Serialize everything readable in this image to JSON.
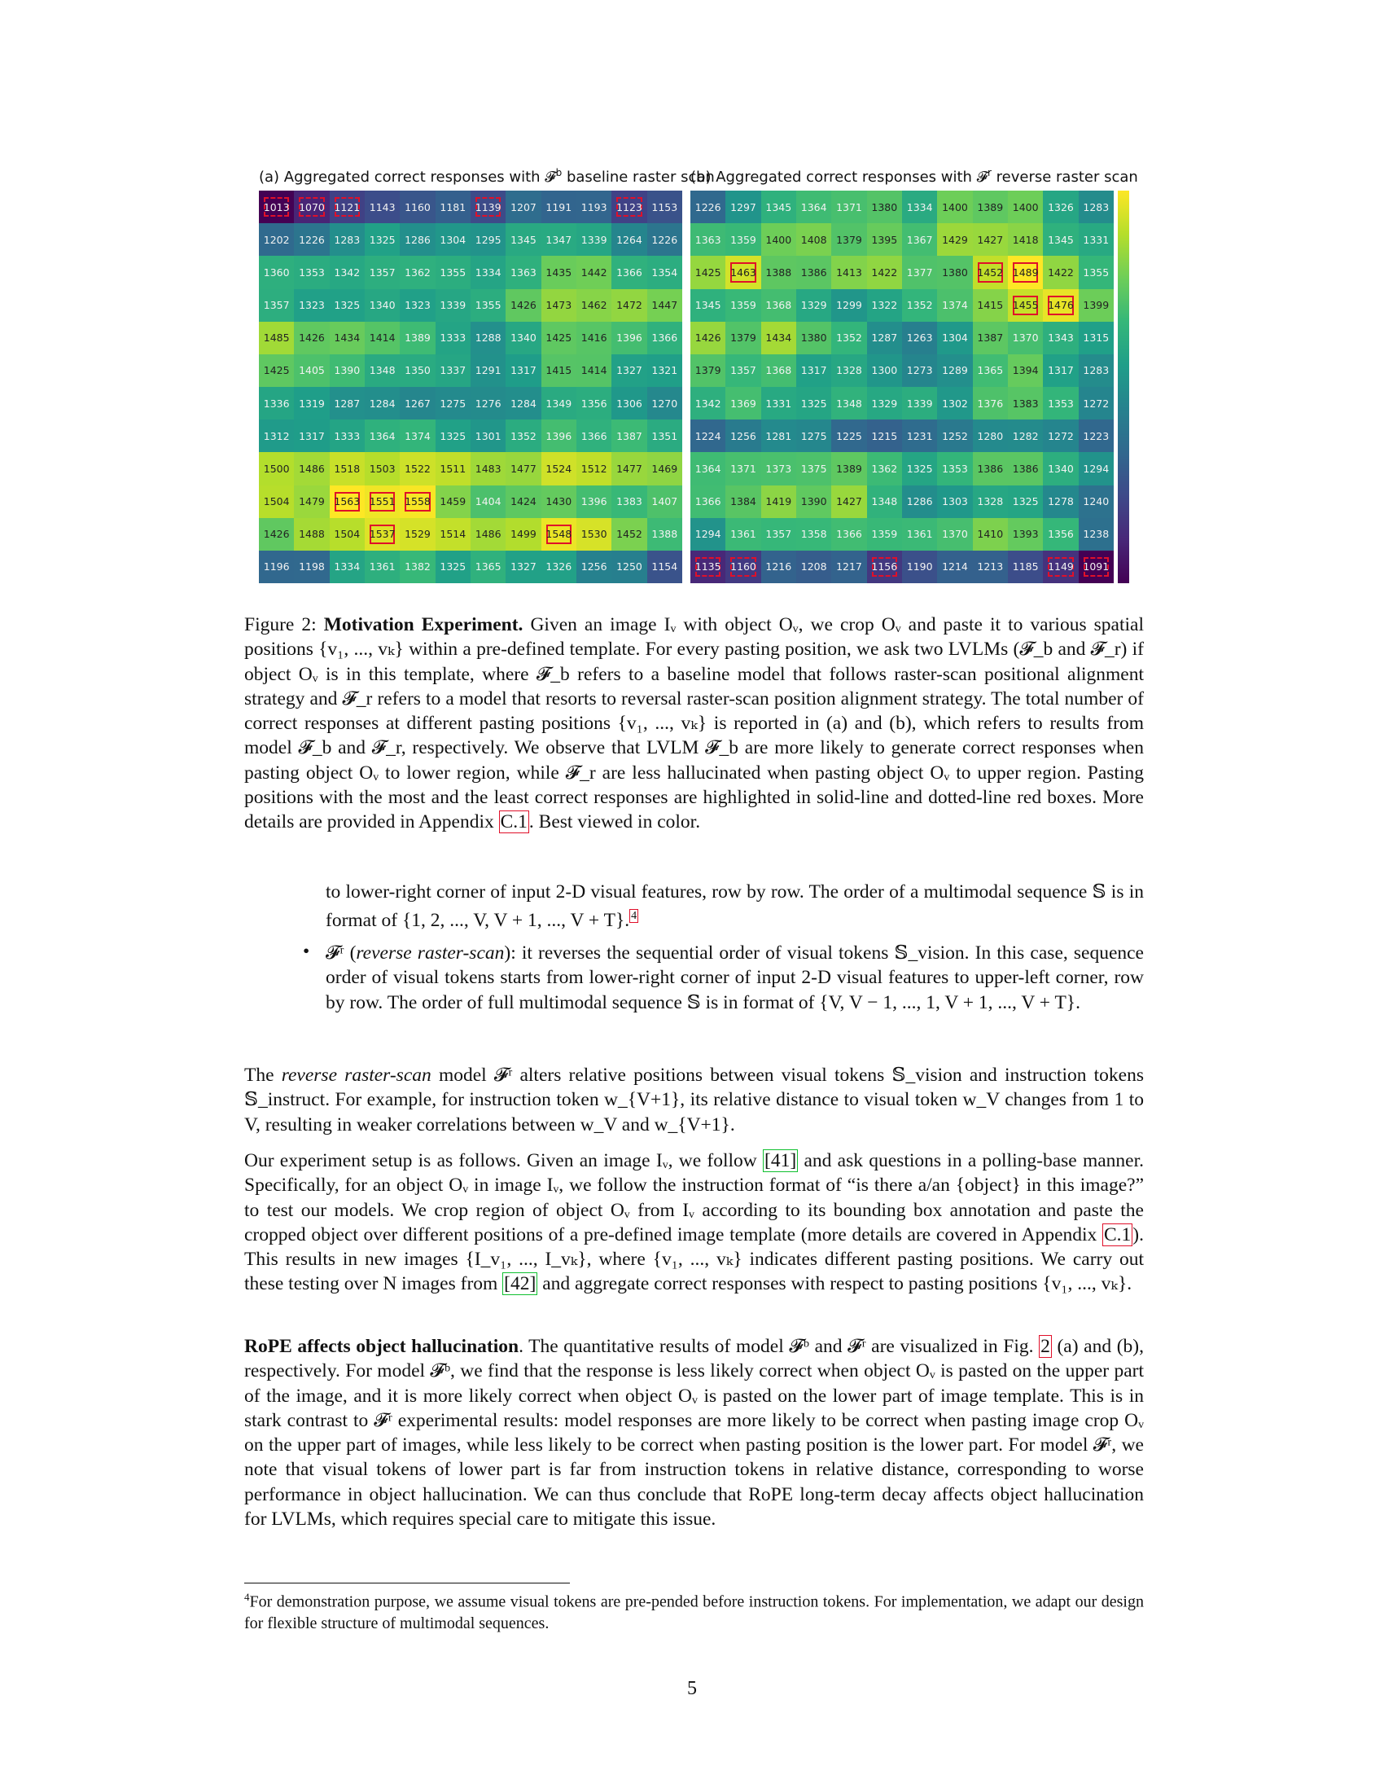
{
  "figure": {
    "title_a_prefix": "(a) Aggregated correct responses with ",
    "title_a_sym": "𝓕",
    "title_a_sup": "b",
    "title_a_suffix": " baseline raster scan",
    "title_b_prefix": "(b) Aggregated correct responses with ",
    "title_b_sym": "𝓕",
    "title_b_sup": "r",
    "title_b_suffix": " reverse raster scan",
    "colormap": [
      "#440154",
      "#482878",
      "#3e4989",
      "#31688e",
      "#26828e",
      "#1f9e89",
      "#35b779",
      "#6ece58",
      "#b5de2b",
      "#fde725"
    ],
    "highlight_color": "#e0102a"
  },
  "chart_data": [
    {
      "type": "heatmap",
      "title": "(a) Aggregated correct responses with 𝓕b baseline raster scan",
      "values": [
        [
          1013,
          1070,
          1121,
          1143,
          1160,
          1181,
          1139,
          1207,
          1191,
          1193,
          1123,
          1153
        ],
        [
          1202,
          1226,
          1283,
          1325,
          1286,
          1304,
          1295,
          1345,
          1347,
          1339,
          1264,
          1226
        ],
        [
          1360,
          1353,
          1342,
          1357,
          1362,
          1355,
          1334,
          1363,
          1435,
          1442,
          1366,
          1354
        ],
        [
          1357,
          1323,
          1325,
          1340,
          1323,
          1339,
          1355,
          1426,
          1473,
          1462,
          1472,
          1447
        ],
        [
          1485,
          1426,
          1434,
          1414,
          1389,
          1333,
          1288,
          1340,
          1425,
          1416,
          1396,
          1366
        ],
        [
          1425,
          1405,
          1390,
          1348,
          1350,
          1337,
          1291,
          1317,
          1415,
          1414,
          1327,
          1321
        ],
        [
          1336,
          1319,
          1287,
          1284,
          1267,
          1275,
          1276,
          1284,
          1349,
          1356,
          1306,
          1270
        ],
        [
          1312,
          1317,
          1333,
          1364,
          1374,
          1325,
          1301,
          1352,
          1396,
          1366,
          1387,
          1351
        ],
        [
          1500,
          1486,
          1518,
          1503,
          1522,
          1511,
          1483,
          1477,
          1524,
          1512,
          1477,
          1469
        ],
        [
          1504,
          1479,
          1563,
          1551,
          1558,
          1459,
          1404,
          1424,
          1430,
          1396,
          1383,
          1407
        ],
        [
          1426,
          1488,
          1504,
          1537,
          1529,
          1514,
          1486,
          1499,
          1548,
          1530,
          1452,
          1388
        ],
        [
          1196,
          1198,
          1334,
          1361,
          1382,
          1325,
          1365,
          1327,
          1326,
          1256,
          1250,
          1154
        ]
      ],
      "color_range": [
        1013,
        1563
      ],
      "solid_boxes": [
        [
          9,
          2
        ],
        [
          9,
          3
        ],
        [
          9,
          4
        ],
        [
          10,
          3
        ],
        [
          10,
          8
        ]
      ],
      "dotted_boxes": [
        [
          0,
          0
        ],
        [
          0,
          1
        ],
        [
          0,
          2
        ],
        [
          0,
          6
        ],
        [
          0,
          10
        ]
      ]
    },
    {
      "type": "heatmap",
      "title": "(b) Aggregated correct responses with 𝓕r reverse raster scan",
      "values": [
        [
          1226,
          1297,
          1345,
          1364,
          1371,
          1380,
          1334,
          1400,
          1389,
          1400,
          1326,
          1283
        ],
        [
          1363,
          1359,
          1400,
          1408,
          1379,
          1395,
          1367,
          1429,
          1427,
          1418,
          1345,
          1331
        ],
        [
          1425,
          1463,
          1388,
          1386,
          1413,
          1422,
          1377,
          1380,
          1452,
          1489,
          1422,
          1355
        ],
        [
          1345,
          1359,
          1368,
          1329,
          1299,
          1322,
          1352,
          1374,
          1415,
          1455,
          1476,
          1399
        ],
        [
          1426,
          1379,
          1434,
          1380,
          1352,
          1287,
          1263,
          1304,
          1387,
          1370,
          1343,
          1315
        ],
        [
          1379,
          1357,
          1368,
          1317,
          1328,
          1300,
          1273,
          1289,
          1365,
          1394,
          1317,
          1283
        ],
        [
          1342,
          1369,
          1331,
          1325,
          1348,
          1329,
          1339,
          1302,
          1376,
          1383,
          1353,
          1272
        ],
        [
          1224,
          1256,
          1281,
          1275,
          1225,
          1215,
          1231,
          1252,
          1280,
          1282,
          1272,
          1223
        ],
        [
          1364,
          1371,
          1373,
          1375,
          1389,
          1362,
          1325,
          1353,
          1386,
          1386,
          1340,
          1294
        ],
        [
          1366,
          1384,
          1419,
          1390,
          1427,
          1348,
          1286,
          1303,
          1328,
          1325,
          1278,
          1240
        ],
        [
          1294,
          1361,
          1357,
          1358,
          1366,
          1359,
          1361,
          1370,
          1410,
          1393,
          1356,
          1238
        ],
        [
          1135,
          1160,
          1216,
          1208,
          1217,
          1156,
          1190,
          1214,
          1213,
          1185,
          1149,
          1091
        ]
      ],
      "color_range": [
        1091,
        1489
      ],
      "solid_boxes": [
        [
          2,
          1
        ],
        [
          2,
          8
        ],
        [
          2,
          9
        ],
        [
          3,
          9
        ],
        [
          3,
          10
        ]
      ],
      "dotted_boxes": [
        [
          11,
          0
        ],
        [
          11,
          1
        ],
        [
          11,
          5
        ],
        [
          11,
          10
        ],
        [
          11,
          11
        ]
      ]
    }
  ],
  "caption": {
    "label": "Figure 2: ",
    "bold": "Motivation Experiment.",
    "text": " Given an image Iᵥ with object Oᵥ, we crop Oᵥ and paste it to various spatial positions {v₁, ..., vₖ} within a pre-defined template. For every pasting position, we ask two LVLMs (𝓕_b and 𝓕_r) if object Oᵥ is in this template, where 𝓕_b refers to a baseline model that follows raster-scan positional alignment strategy and 𝓕_r refers to a model that resorts to reversal raster-scan position alignment strategy. The total number of correct responses at different pasting positions {v₁, ..., vₖ} is reported in (a) and (b), which refers to results from model 𝓕_b and 𝓕_r, respectively. We observe that LVLM 𝓕_b are more likely to generate correct responses when pasting object Oᵥ to lower region, while 𝓕_r are less hallucinated when pasting object Oᵥ to upper region. Pasting positions with the most and the least correct responses are highlighted in solid-line and dotted-line red boxes. More details are provided in Appendix ",
    "ref": "C.1",
    "end": ". Best viewed in color."
  },
  "continuation": {
    "text": "to lower-right corner of input 2-D visual features, row by row. The order of a multimodal sequence 𝕊 is in format of {1, 2, ..., V, V + 1, ..., V + T}.",
    "fn_mark": "4"
  },
  "bullet": {
    "mark": "•",
    "sym": "𝓕ʳ",
    "open": " (",
    "term": "reverse raster-scan",
    "text": "): it reverses the sequential order of visual tokens 𝕊_vision. In this case, sequence order of visual tokens starts from lower-right corner of input 2-D visual features to upper-left corner, row by row. The order of full multimodal sequence 𝕊 is in format of {V, V − 1, ..., 1, V + 1, ..., V + T}."
  },
  "para1": {
    "prefix": "The ",
    "term": "reverse raster-scan",
    "text": " model 𝓕ʳ alters relative positions between visual tokens 𝕊_vision and instruction tokens 𝕊_instruct. For example, for instruction token w_{V+1}, its relative distance to visual token w_V changes from 1 to V, resulting in weaker correlations between w_V and w_{V+1}."
  },
  "para2": {
    "t1": "Our experiment setup is as follows. Given an image Iᵥ, we follow ",
    "ref1": "[41]",
    "t2": " and ask questions in a polling-base manner. Specifically, for an object Oᵥ in image Iᵥ, we follow the instruction format of “is there a/an {object} in this image?” to test our models. We crop region of object Oᵥ from Iᵥ according to its bounding box annotation and paste the cropped object over different positions of a pre-defined image template (more details are covered in Appendix ",
    "ref2": "C.1",
    "t3": "). This results in new images {I_v₁, ..., I_vₖ}, where {v₁, ..., vₖ} indicates different pasting positions. We carry out these testing over N images from ",
    "ref3": "[42]",
    "t4": " and aggregate correct responses with respect to pasting positions {v₁, ..., vₖ}."
  },
  "para3": {
    "bold": "RoPE affects object hallucination",
    "t1": ". The quantitative results of model 𝓕ᵇ and 𝓕ʳ are visualized in Fig. ",
    "ref": "2",
    "t2": " (a) and (b), respectively. For model 𝓕ᵇ, we find that the response is less likely correct when object Oᵥ is pasted on the upper part of the image, and it is more likely correct when object Oᵥ is pasted on the lower part of image template. This is in stark contrast to 𝓕ʳ experimental results: model responses are more likely to be correct when pasting image crop Oᵥ on the upper part of images, while less likely to be correct when pasting position is the lower part. For model 𝓕ʳ, we note that visual tokens of lower part is far from instruction tokens in relative distance, corresponding to worse performance in object hallucination. We can thus conclude that RoPE long-term decay affects object hallucination for LVLMs, which requires special care to mitigate this issue."
  },
  "footnote": {
    "mark": "4",
    "text": "For demonstration purpose, we assume visual tokens are pre-pended before instruction tokens. For implementation, we adapt our design for flexible structure of multimodal sequences."
  },
  "page_number": "5"
}
